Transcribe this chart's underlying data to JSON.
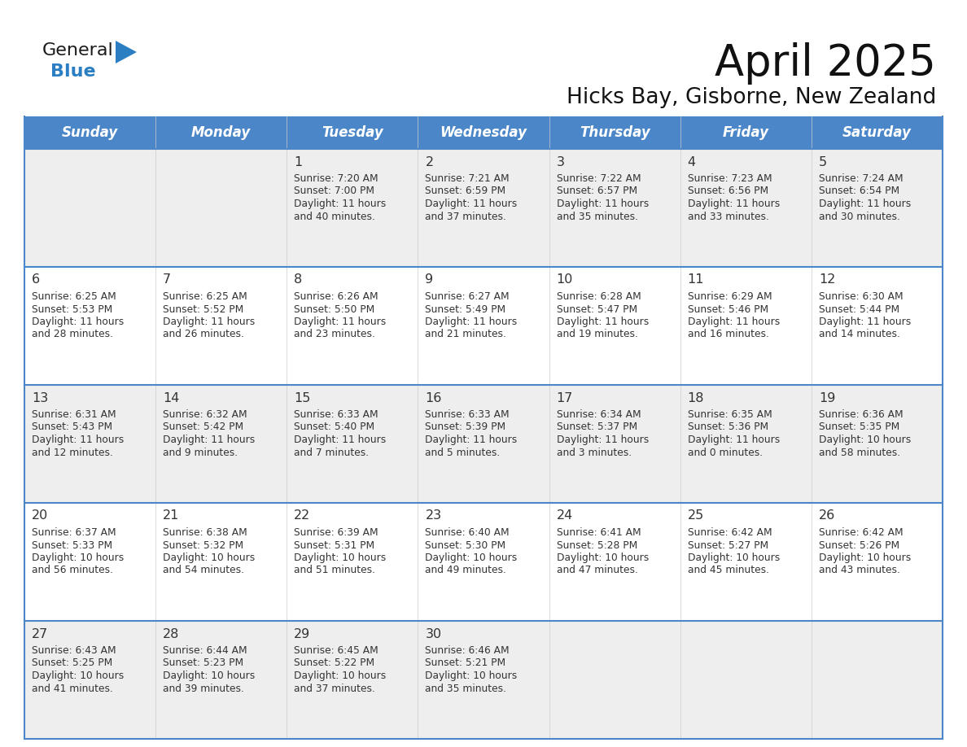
{
  "title": "April 2025",
  "subtitle": "Hicks Bay, Gisborne, New Zealand",
  "days_of_week": [
    "Sunday",
    "Monday",
    "Tuesday",
    "Wednesday",
    "Thursday",
    "Friday",
    "Saturday"
  ],
  "header_bg": "#4a86c8",
  "header_text": "#ffffff",
  "row_bg_light": "#eeeeee",
  "row_bg_white": "#ffffff",
  "border_color": "#4a86c8",
  "text_color": "#333333",
  "day_num_color": "#333333",
  "calendar": [
    [
      {
        "day": "",
        "info": ""
      },
      {
        "day": "",
        "info": ""
      },
      {
        "day": "1",
        "info": "Sunrise: 7:20 AM\nSunset: 7:00 PM\nDaylight: 11 hours\nand 40 minutes."
      },
      {
        "day": "2",
        "info": "Sunrise: 7:21 AM\nSunset: 6:59 PM\nDaylight: 11 hours\nand 37 minutes."
      },
      {
        "day": "3",
        "info": "Sunrise: 7:22 AM\nSunset: 6:57 PM\nDaylight: 11 hours\nand 35 minutes."
      },
      {
        "day": "4",
        "info": "Sunrise: 7:23 AM\nSunset: 6:56 PM\nDaylight: 11 hours\nand 33 minutes."
      },
      {
        "day": "5",
        "info": "Sunrise: 7:24 AM\nSunset: 6:54 PM\nDaylight: 11 hours\nand 30 minutes."
      }
    ],
    [
      {
        "day": "6",
        "info": "Sunrise: 6:25 AM\nSunset: 5:53 PM\nDaylight: 11 hours\nand 28 minutes."
      },
      {
        "day": "7",
        "info": "Sunrise: 6:25 AM\nSunset: 5:52 PM\nDaylight: 11 hours\nand 26 minutes."
      },
      {
        "day": "8",
        "info": "Sunrise: 6:26 AM\nSunset: 5:50 PM\nDaylight: 11 hours\nand 23 minutes."
      },
      {
        "day": "9",
        "info": "Sunrise: 6:27 AM\nSunset: 5:49 PM\nDaylight: 11 hours\nand 21 minutes."
      },
      {
        "day": "10",
        "info": "Sunrise: 6:28 AM\nSunset: 5:47 PM\nDaylight: 11 hours\nand 19 minutes."
      },
      {
        "day": "11",
        "info": "Sunrise: 6:29 AM\nSunset: 5:46 PM\nDaylight: 11 hours\nand 16 minutes."
      },
      {
        "day": "12",
        "info": "Sunrise: 6:30 AM\nSunset: 5:44 PM\nDaylight: 11 hours\nand 14 minutes."
      }
    ],
    [
      {
        "day": "13",
        "info": "Sunrise: 6:31 AM\nSunset: 5:43 PM\nDaylight: 11 hours\nand 12 minutes."
      },
      {
        "day": "14",
        "info": "Sunrise: 6:32 AM\nSunset: 5:42 PM\nDaylight: 11 hours\nand 9 minutes."
      },
      {
        "day": "15",
        "info": "Sunrise: 6:33 AM\nSunset: 5:40 PM\nDaylight: 11 hours\nand 7 minutes."
      },
      {
        "day": "16",
        "info": "Sunrise: 6:33 AM\nSunset: 5:39 PM\nDaylight: 11 hours\nand 5 minutes."
      },
      {
        "day": "17",
        "info": "Sunrise: 6:34 AM\nSunset: 5:37 PM\nDaylight: 11 hours\nand 3 minutes."
      },
      {
        "day": "18",
        "info": "Sunrise: 6:35 AM\nSunset: 5:36 PM\nDaylight: 11 hours\nand 0 minutes."
      },
      {
        "day": "19",
        "info": "Sunrise: 6:36 AM\nSunset: 5:35 PM\nDaylight: 10 hours\nand 58 minutes."
      }
    ],
    [
      {
        "day": "20",
        "info": "Sunrise: 6:37 AM\nSunset: 5:33 PM\nDaylight: 10 hours\nand 56 minutes."
      },
      {
        "day": "21",
        "info": "Sunrise: 6:38 AM\nSunset: 5:32 PM\nDaylight: 10 hours\nand 54 minutes."
      },
      {
        "day": "22",
        "info": "Sunrise: 6:39 AM\nSunset: 5:31 PM\nDaylight: 10 hours\nand 51 minutes."
      },
      {
        "day": "23",
        "info": "Sunrise: 6:40 AM\nSunset: 5:30 PM\nDaylight: 10 hours\nand 49 minutes."
      },
      {
        "day": "24",
        "info": "Sunrise: 6:41 AM\nSunset: 5:28 PM\nDaylight: 10 hours\nand 47 minutes."
      },
      {
        "day": "25",
        "info": "Sunrise: 6:42 AM\nSunset: 5:27 PM\nDaylight: 10 hours\nand 45 minutes."
      },
      {
        "day": "26",
        "info": "Sunrise: 6:42 AM\nSunset: 5:26 PM\nDaylight: 10 hours\nand 43 minutes."
      }
    ],
    [
      {
        "day": "27",
        "info": "Sunrise: 6:43 AM\nSunset: 5:25 PM\nDaylight: 10 hours\nand 41 minutes."
      },
      {
        "day": "28",
        "info": "Sunrise: 6:44 AM\nSunset: 5:23 PM\nDaylight: 10 hours\nand 39 minutes."
      },
      {
        "day": "29",
        "info": "Sunrise: 6:45 AM\nSunset: 5:22 PM\nDaylight: 10 hours\nand 37 minutes."
      },
      {
        "day": "30",
        "info": "Sunrise: 6:46 AM\nSunset: 5:21 PM\nDaylight: 10 hours\nand 35 minutes."
      },
      {
        "day": "",
        "info": ""
      },
      {
        "day": "",
        "info": ""
      },
      {
        "day": "",
        "info": ""
      }
    ]
  ],
  "logo_general_color": "#1a1a1a",
  "logo_blue_color": "#2b7ec1",
  "logo_triangle_color": "#2b7ec1",
  "figwidth": 11.88,
  "figheight": 9.18,
  "dpi": 100
}
